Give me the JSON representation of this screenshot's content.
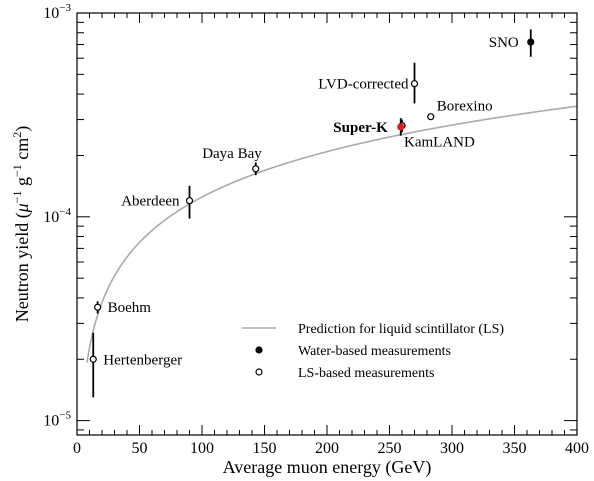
{
  "chart_data": {
    "type": "scatter",
    "title": "",
    "xlabel": "Average muon energy (GeV)",
    "ylabel_parts": [
      "Neutron yield (",
      "μ",
      "−1",
      " g",
      "−1",
      " cm",
      "2",
      ")"
    ],
    "xscale": "linear",
    "yscale": "log",
    "xlim": [
      0,
      400
    ],
    "ylim": [
      8.5e-06,
      0.001
    ],
    "grid": false,
    "xticks": [
      "0",
      "50",
      "100",
      "150",
      "200",
      "250",
      "300",
      "350",
      "400"
    ],
    "xtick_values": [
      0,
      50,
      100,
      150,
      200,
      250,
      300,
      350,
      400
    ],
    "yticks": [
      {
        "value": 1e-05,
        "base": "10",
        "exp": "−5"
      },
      {
        "value": 0.0001,
        "base": "10",
        "exp": "−4"
      },
      {
        "value": 0.001,
        "base": "10",
        "exp": "−3"
      }
    ],
    "prediction": {
      "label": "Prediction for liquid scintillator (LS)",
      "color": "#aaaaaa",
      "coefficient": 4.14e-06,
      "exponent": 0.74,
      "x_start": 8
    },
    "points": [
      {
        "label": "Hertenberger",
        "x": 13,
        "y": 2e-05,
        "err_low": 1.3e-05,
        "err_high": 2.7e-05,
        "type": "LS",
        "label_pos": "right"
      },
      {
        "label": "Boehm",
        "x": 16.5,
        "y": 3.6e-05,
        "err_low": 3.35e-05,
        "err_high": 3.85e-05,
        "type": "LS",
        "label_pos": "right"
      },
      {
        "label": "Aberdeen",
        "x": 90,
        "y": 0.00012,
        "err_low": 9.8e-05,
        "err_high": 0.000142,
        "type": "LS",
        "label_pos": "left"
      },
      {
        "label": "Daya Bay",
        "x": 143,
        "y": 0.000172,
        "err_low": 0.00016,
        "err_high": 0.000185,
        "type": "LS",
        "label_pos": "upleft"
      },
      {
        "label": "LVD-corrected",
        "x": 270,
        "y": 0.00045,
        "err_low": 0.00036,
        "err_high": 0.00057,
        "type": "LS",
        "label_pos": "left"
      },
      {
        "label": "Borexino",
        "x": 283,
        "y": 0.00031,
        "err_low": 0.0003,
        "err_high": 0.00032,
        "type": "LS",
        "label_pos": "upright"
      },
      {
        "label": "KamLAND",
        "x": 260,
        "y": 0.00028,
        "err_low": 0.00026,
        "err_high": 0.0003,
        "type": "LS",
        "label_pos": "downright"
      },
      {
        "label": "Super-K",
        "x": 259,
        "y": 0.000276,
        "err_low": 0.00025,
        "err_high": 0.000305,
        "type": "Water",
        "label_pos": "left",
        "color": "#e41a1c"
      },
      {
        "label": "SNO",
        "x": 363,
        "y": 0.00072,
        "err_low": 0.00061,
        "err_high": 0.00083,
        "type": "Water",
        "label_pos": "left"
      }
    ],
    "legend": {
      "placement": "bottom-right",
      "entries": [
        {
          "marker": "line",
          "label": "Prediction for liquid scintillator (LS)"
        },
        {
          "marker": "filled-circle",
          "label": "Water-based measurements"
        },
        {
          "marker": "open-circle",
          "label": "LS-based measurements"
        }
      ]
    }
  }
}
